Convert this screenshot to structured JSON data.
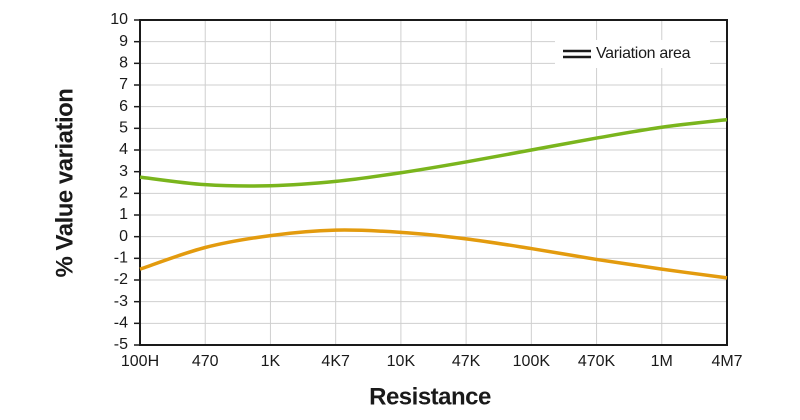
{
  "chart_data": {
    "type": "line",
    "x_label": "Resistance",
    "y_label": "% Value variation",
    "categories": [
      "100H",
      "470",
      "1K",
      "4K7",
      "10K",
      "47K",
      "100K",
      "470K",
      "1M",
      "4M7"
    ],
    "series": [
      {
        "color": "#7ab51d",
        "values": [
          2.75,
          2.4,
          2.35,
          2.55,
          2.95,
          3.45,
          4.0,
          4.55,
          5.05,
          5.4
        ]
      },
      {
        "color": "#e39b0e",
        "values": [
          -1.5,
          -0.5,
          0.05,
          0.3,
          0.2,
          -0.1,
          -0.55,
          -1.05,
          -1.5,
          -1.9
        ]
      }
    ],
    "legend": {
      "label": "Variation area",
      "position": "upper right"
    },
    "ylim": [
      -5,
      10
    ],
    "yticks": [
      -5,
      -4,
      -3,
      -2,
      -1,
      0,
      1,
      2,
      3,
      4,
      5,
      6,
      7,
      8,
      9,
      10
    ],
    "grid": true
  }
}
